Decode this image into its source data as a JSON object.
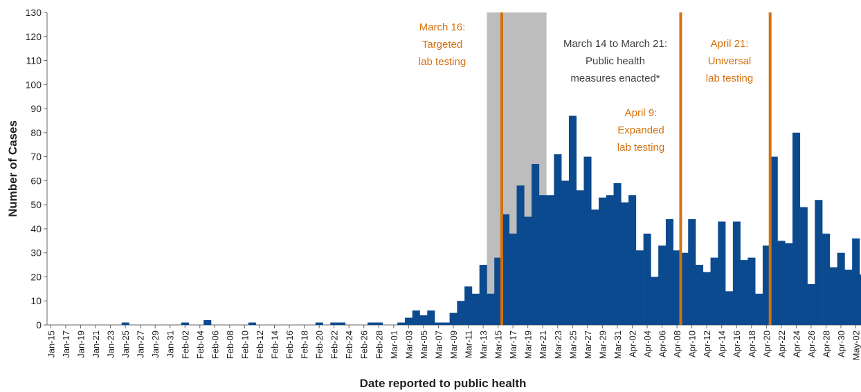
{
  "chart_data": {
    "type": "bar",
    "x_label": "Date reported to public health",
    "y_label": "Number of Cases",
    "color": "#0b4a8e",
    "categories": [
      "Jan-15",
      null,
      "Jan-17",
      null,
      "Jan-19",
      null,
      "Jan-21",
      null,
      "Jan-23",
      null,
      "Jan-25",
      null,
      "Jan-27",
      null,
      "Jan-29",
      null,
      "Jan-31",
      null,
      "Feb-02",
      null,
      "Feb-04",
      null,
      "Feb-06",
      null,
      "Feb-08",
      null,
      "Feb-10",
      null,
      "Feb-12",
      null,
      "Feb-14",
      null,
      "Feb-16",
      null,
      "Feb-18",
      null,
      "Feb-20",
      null,
      "Feb-22",
      null,
      "Feb-24",
      null,
      "Feb-26",
      null,
      "Feb-28",
      null,
      "Mar-01",
      null,
      "Mar-03",
      null,
      "Mar-05",
      null,
      "Mar-07",
      null,
      "Mar-09",
      null,
      "Mar-11",
      null,
      "Mar-13",
      null,
      "Mar-15",
      null,
      "Mar-17",
      null,
      "Mar-19",
      null,
      "Mar-21",
      null,
      "Mar-23",
      null,
      "Mar-25",
      null,
      "Mar-27",
      null,
      "Mar-29",
      null,
      "Mar-31",
      null,
      "Apr-02",
      null,
      "Apr-04",
      null,
      "Apr-06",
      null,
      "Apr-08",
      null,
      "Apr-10",
      null,
      "Apr-12",
      null,
      "Apr-14",
      null,
      "Apr-16",
      null,
      "Apr-18",
      null,
      "Apr-20",
      null,
      "Apr-22",
      null,
      "Apr-24",
      null,
      "Apr-26",
      null,
      "Apr-28",
      null,
      "Apr-30",
      null,
      "May-02",
      null
    ],
    "values": [
      0,
      0,
      0,
      0,
      0,
      0,
      0,
      0,
      0,
      0,
      1,
      0,
      0,
      0,
      0,
      0,
      0,
      0,
      1,
      0,
      0,
      2,
      0,
      0,
      0,
      0,
      0,
      1,
      0,
      0,
      0,
      0,
      0,
      0,
      0,
      0,
      1,
      0,
      1,
      1,
      0,
      0,
      0,
      1,
      1,
      0,
      0,
      1,
      3,
      6,
      4,
      6,
      1,
      1,
      5,
      10,
      16,
      13,
      25,
      13,
      28,
      46,
      38,
      58,
      45,
      67,
      54,
      54,
      71,
      60,
      87,
      56,
      70,
      48,
      53,
      54,
      59,
      51,
      54,
      31,
      38,
      20,
      33,
      44,
      31,
      30,
      44,
      25,
      22,
      28,
      43,
      14,
      43,
      27,
      28,
      13,
      33,
      70,
      35,
      34,
      80,
      49,
      17,
      52,
      38,
      24,
      30,
      23,
      36,
      21
    ],
    "ylim": [
      0,
      130
    ],
    "yticks": [
      0,
      10,
      20,
      30,
      40,
      50,
      60,
      70,
      80,
      90,
      100,
      110,
      120,
      130
    ],
    "grid": false,
    "annotations": [
      {
        "lines": [
          "March 16:",
          "Targeted",
          "lab testing"
        ],
        "color": "#d4700f"
      },
      {
        "lines": [
          "March 14 to March 21:",
          "Public health",
          "measures enacted*"
        ],
        "color": "#404040"
      },
      {
        "lines": [
          "April 9:",
          "Expanded",
          "lab testing"
        ],
        "color": "#d4700f"
      },
      {
        "lines": [
          "April 21:",
          "Universal",
          "lab testing"
        ],
        "color": "#d4700f"
      }
    ]
  }
}
